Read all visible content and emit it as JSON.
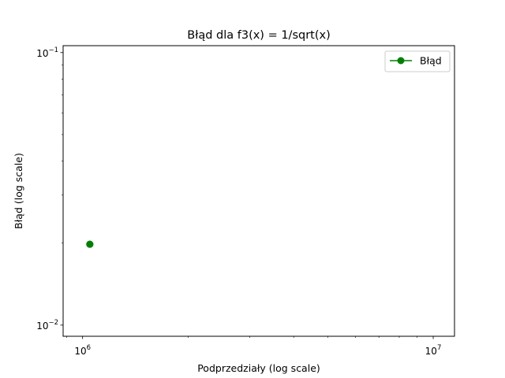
{
  "chart_data": {
    "type": "line",
    "title": "Błąd dla f3(x) = 1/sqrt(x)",
    "xlabel": "Podprzedziały (log scale)",
    "ylabel": "Błąd (log scale)",
    "xscale": "log",
    "yscale": "log",
    "xlim": [
      880000,
      11500000
    ],
    "ylim": [
      0.0091,
      0.106
    ],
    "x_major_ticks": [
      {
        "value": 1000000,
        "base": "10",
        "exp": "6"
      },
      {
        "value": 10000000,
        "base": "10",
        "exp": "7"
      }
    ],
    "y_major_ticks": [
      {
        "value": 0.01,
        "base": "10",
        "exp": "−2"
      },
      {
        "value": 0.1,
        "base": "10",
        "exp": "−1"
      }
    ],
    "grid": false,
    "legend_position": "top-right",
    "series": [
      {
        "name": "Błąd",
        "color": "#008000",
        "marker": "circle",
        "x": [
          1048576,
          1048576,
          1048576
        ],
        "y": [
          0.0198,
          0.0198,
          0.0198
        ]
      }
    ]
  }
}
